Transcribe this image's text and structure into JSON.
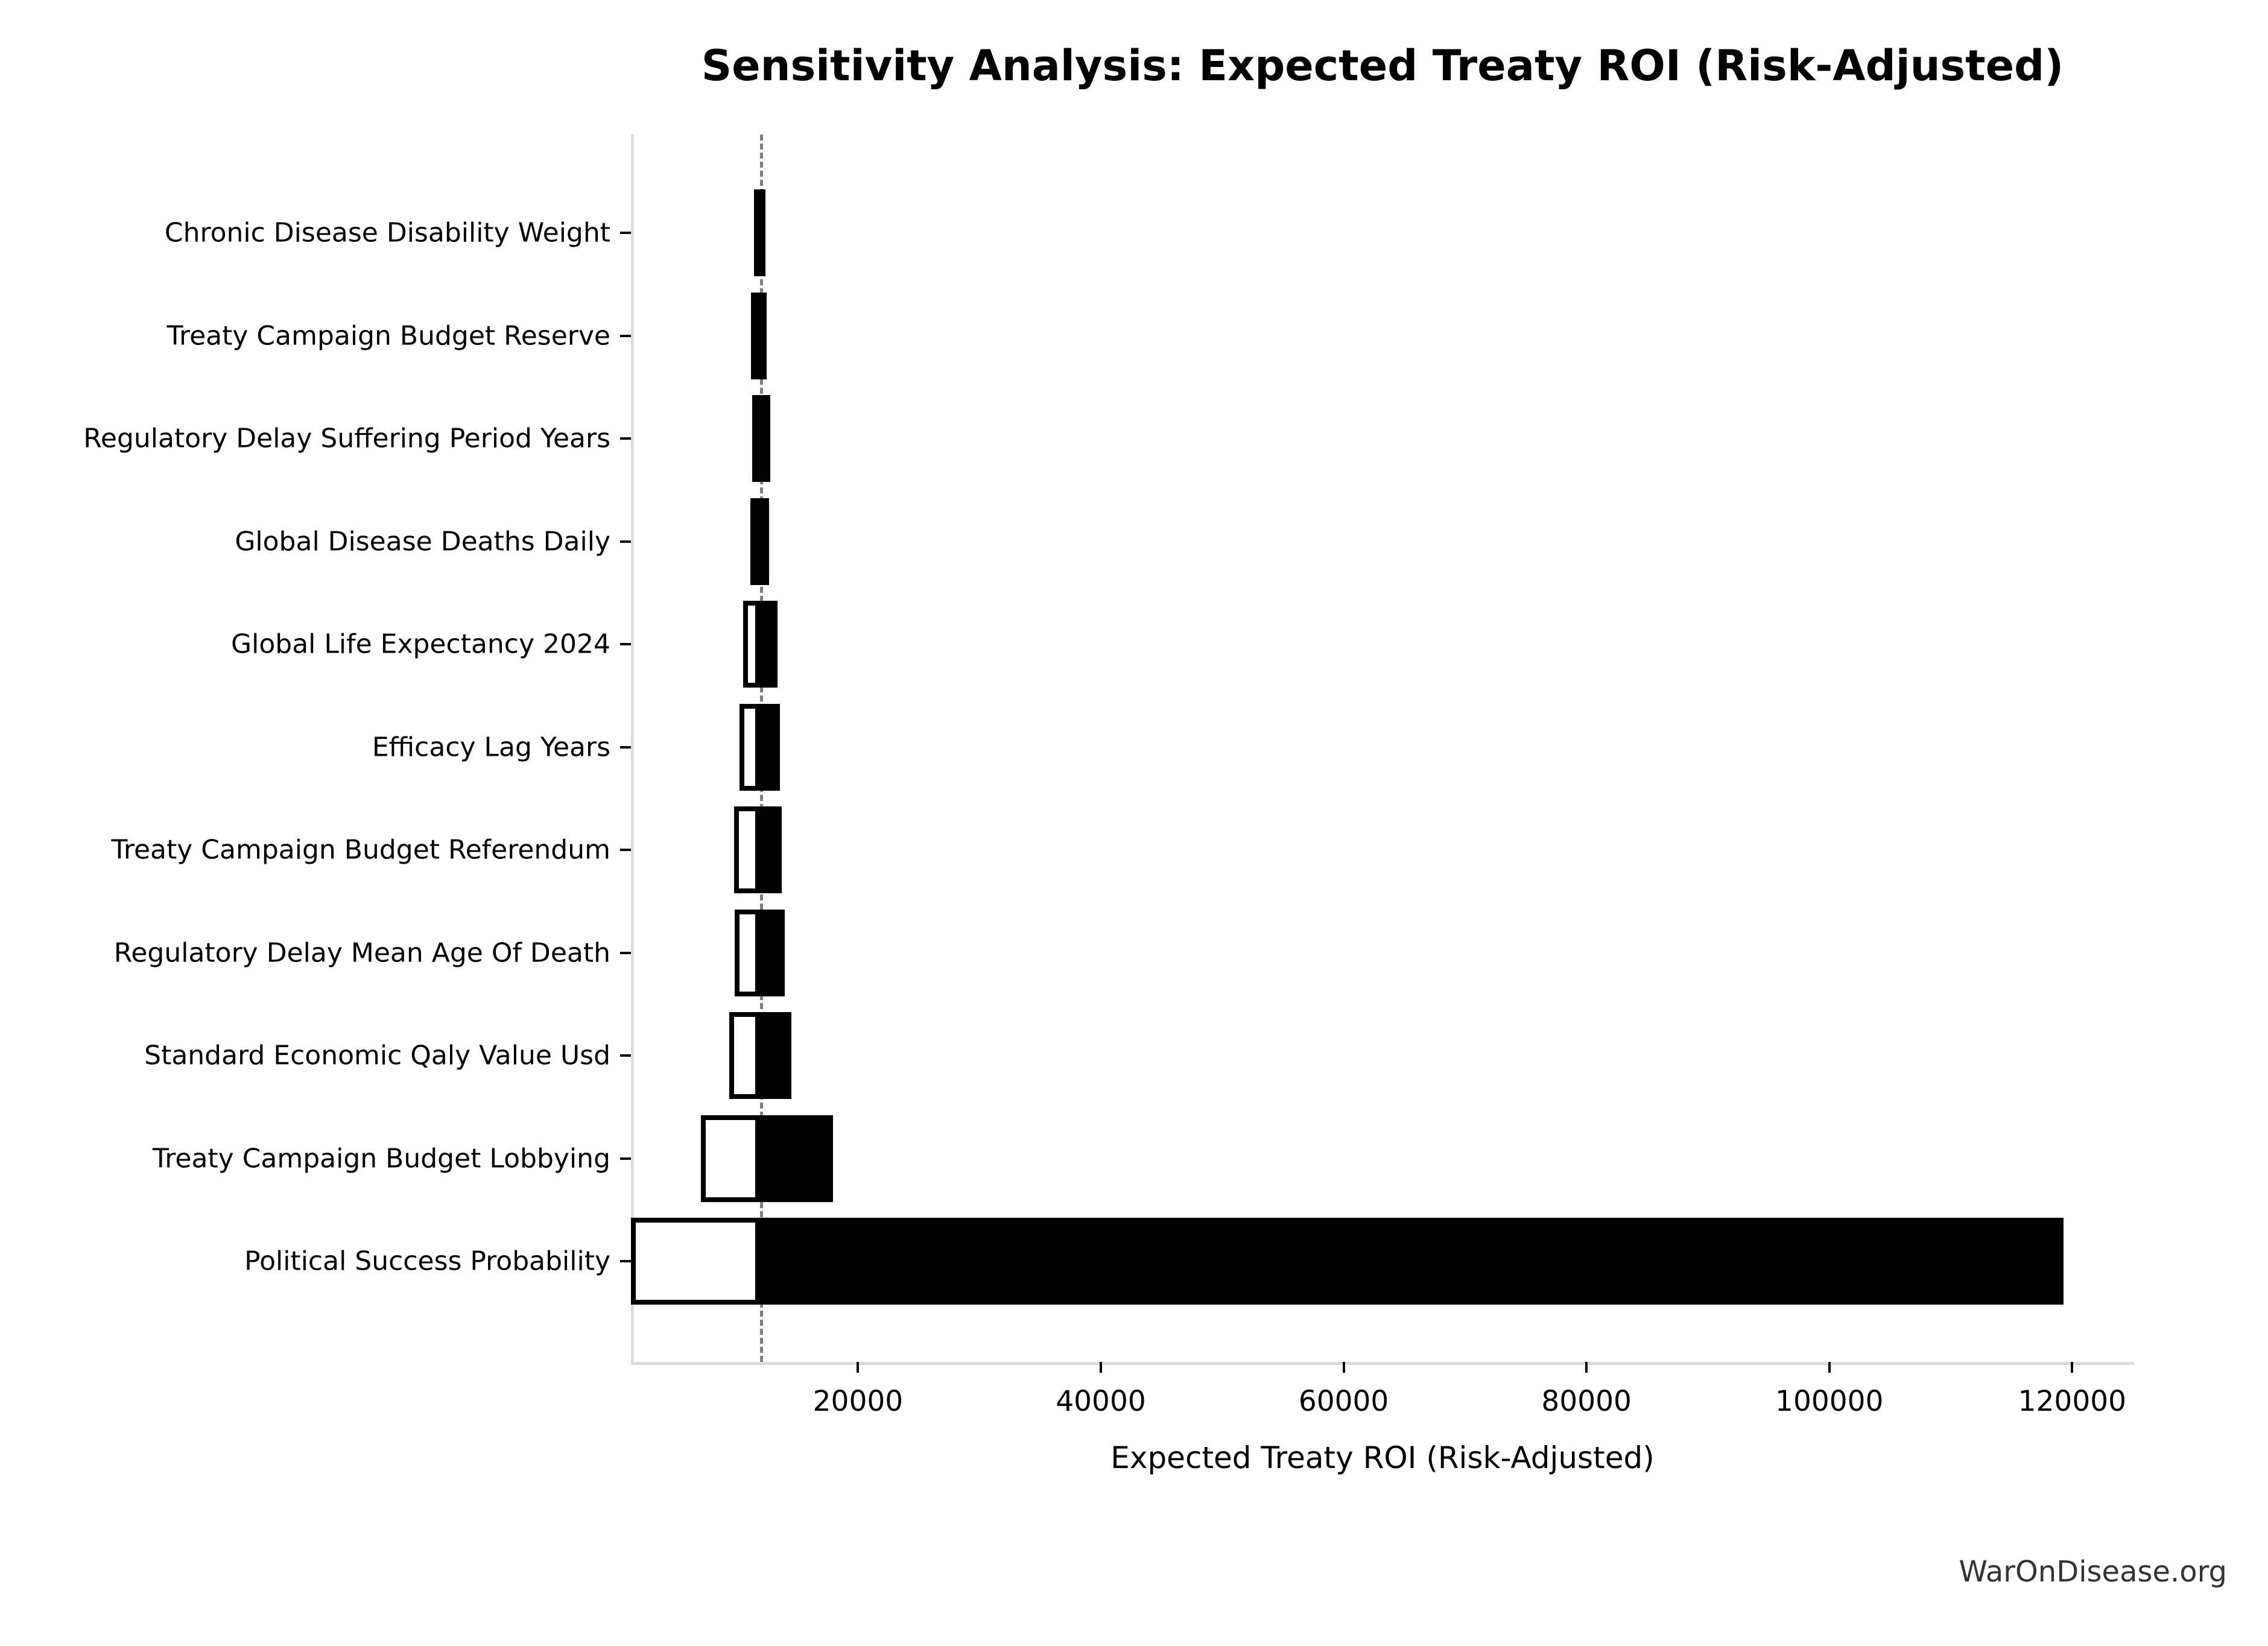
{
  "title": "Sensitivity Analysis: Expected Treaty ROI (Risk-Adjusted)",
  "watermark": "WarOnDisease.org",
  "chart_data": {
    "type": "bar",
    "subtype": "tornado",
    "orientation": "horizontal",
    "title": "Sensitivity Analysis: Expected Treaty ROI (Risk-Adjusted)",
    "xlabel": "Expected Treaty ROI (Risk-Adjusted)",
    "ylabel": "",
    "baseline": 11950,
    "xlim": [
      1300,
      125100
    ],
    "xticks": [
      20000,
      40000,
      60000,
      80000,
      100000,
      120000
    ],
    "grid": false,
    "legend_position": "none",
    "bar_colors": {
      "low_side": "#ffffff",
      "high_side": "#000000",
      "low_edge": "#000000"
    },
    "baseline_style": {
      "color": "#7f7f7f",
      "dash": true
    },
    "categories": [
      "Chronic Disease Disability Weight",
      "Treaty Campaign Budget Reserve",
      "Regulatory Delay Suffering Period Years",
      "Global Disease Deaths Daily",
      "Global Life Expectancy 2024",
      "Efficacy Lag Years",
      "Treaty Campaign Budget Referendum",
      "Regulatory Delay Mean Age Of Death",
      "Standard Economic Qaly Value Usd",
      "Treaty Campaign Budget Lobbying",
      "Political Success Probability"
    ],
    "series": [
      {
        "name": "low",
        "values": [
          11450,
          11200,
          11300,
          11150,
          10550,
          10250,
          9800,
          9850,
          9400,
          7050,
          1300
        ]
      },
      {
        "name": "high",
        "values": [
          12400,
          12500,
          12800,
          12700,
          13350,
          13550,
          13700,
          13950,
          14500,
          17950,
          119300
        ]
      }
    ]
  }
}
